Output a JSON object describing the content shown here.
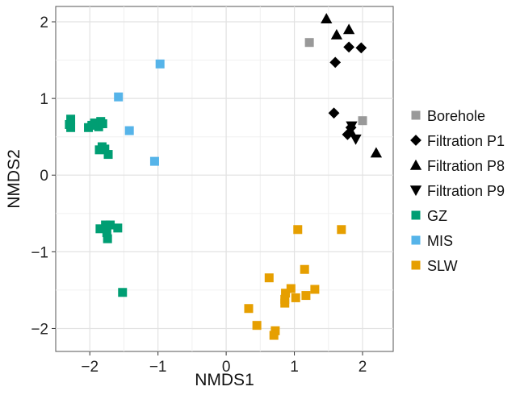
{
  "chart_data": {
    "type": "scatter",
    "title": "",
    "xlabel": "NMDS1",
    "ylabel": "NMDS2",
    "xlim": [
      -2.5,
      2.45
    ],
    "ylim": [
      -2.3,
      2.2
    ],
    "xticks": [
      -2,
      -1,
      0,
      1,
      2
    ],
    "xtick_labels": [
      "−2",
      "−1",
      "0",
      "1",
      "2"
    ],
    "yticks": [
      -2,
      -1,
      0,
      1,
      2
    ],
    "ytick_labels": [
      "−2",
      "−1",
      "0",
      "1",
      "2"
    ],
    "grid": true,
    "legend_position": "right",
    "series": [
      {
        "name": "Borehole",
        "shape": "square",
        "color": "#999999",
        "points": [
          [
            1.22,
            1.73
          ],
          [
            2.0,
            0.71
          ]
        ]
      },
      {
        "name": "Filtration P1",
        "shape": "diamond",
        "color": "#000000",
        "points": [
          [
            1.6,
            1.47
          ],
          [
            1.58,
            0.81
          ],
          [
            1.8,
            1.67
          ],
          [
            1.98,
            1.66
          ],
          [
            1.83,
            0.62
          ],
          [
            1.78,
            0.53
          ]
        ]
      },
      {
        "name": "Filtration P8",
        "shape": "triangle-up",
        "color": "#000000",
        "points": [
          [
            1.47,
            2.04
          ],
          [
            1.62,
            1.83
          ],
          [
            1.8,
            1.9
          ],
          [
            2.2,
            0.29
          ],
          [
            1.82,
            0.58
          ]
        ]
      },
      {
        "name": "Filtration P9",
        "shape": "triangle-down",
        "color": "#000000",
        "points": [
          [
            1.84,
            0.64
          ],
          [
            1.9,
            0.47
          ]
        ]
      },
      {
        "name": "GZ",
        "shape": "square",
        "color": "#009E73",
        "points": [
          [
            -2.28,
            0.73
          ],
          [
            -2.28,
            0.62
          ],
          [
            -2.3,
            0.66
          ],
          [
            -2.02,
            0.62
          ],
          [
            -1.97,
            0.65
          ],
          [
            -1.93,
            0.68
          ],
          [
            -1.87,
            0.63
          ],
          [
            -1.84,
            0.7
          ],
          [
            -1.81,
            0.67
          ],
          [
            -1.86,
            0.33
          ],
          [
            -1.82,
            0.37
          ],
          [
            -1.78,
            0.34
          ],
          [
            -1.73,
            0.27
          ],
          [
            -1.85,
            -0.7
          ],
          [
            -1.77,
            -0.65
          ],
          [
            -1.75,
            -0.75
          ],
          [
            -1.7,
            -0.65
          ],
          [
            -1.74,
            -0.83
          ],
          [
            -1.59,
            -0.69
          ],
          [
            -1.52,
            -1.53
          ]
        ]
      },
      {
        "name": "MIS",
        "shape": "square",
        "color": "#56B4E9",
        "points": [
          [
            -0.97,
            1.45
          ],
          [
            -1.58,
            1.02
          ],
          [
            -1.42,
            0.58
          ],
          [
            -1.05,
            0.18
          ]
        ]
      },
      {
        "name": "SLW",
        "shape": "square",
        "color": "#E69F00",
        "points": [
          [
            1.05,
            -0.71
          ],
          [
            1.69,
            -0.71
          ],
          [
            0.63,
            -1.34
          ],
          [
            1.15,
            -1.23
          ],
          [
            0.95,
            -1.48
          ],
          [
            0.87,
            -1.54
          ],
          [
            0.86,
            -1.62
          ],
          [
            1.02,
            -1.6
          ],
          [
            1.17,
            -1.57
          ],
          [
            1.3,
            -1.49
          ],
          [
            0.86,
            -1.67
          ],
          [
            0.33,
            -1.74
          ],
          [
            0.45,
            -1.96
          ],
          [
            0.72,
            -2.03
          ],
          [
            0.7,
            -2.09
          ]
        ]
      }
    ]
  }
}
